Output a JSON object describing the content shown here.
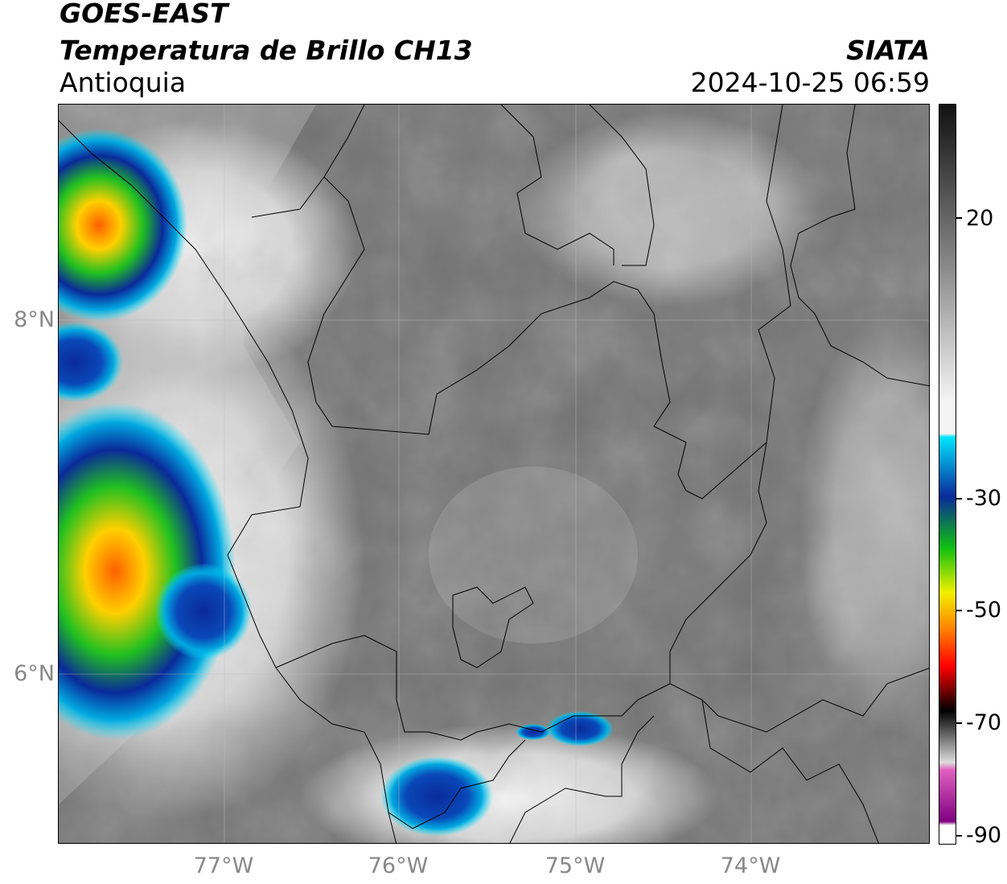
{
  "header": {
    "satellite": "GOES-EAST",
    "product": "Temperatura de Brillo CH13",
    "region": "Antioquia",
    "organization": "SIATA",
    "datetime": "2024-10-25 06:59"
  },
  "map": {
    "latitude_labels": [
      {
        "text": "8°N",
        "lat": 8
      },
      {
        "text": "6°N",
        "lat": 6
      }
    ],
    "longitude_labels": [
      {
        "text": "77°W",
        "lon": -77
      },
      {
        "text": "76°W",
        "lon": -76
      },
      {
        "text": "75°W",
        "lon": -75
      },
      {
        "text": "74°W",
        "lon": -74
      }
    ],
    "extent": {
      "lon_min": -77.94,
      "lon_max": -73.02,
      "lat_min": 4.98,
      "lat_max": 9.2
    }
  },
  "colorbar": {
    "min": -90,
    "max": 30,
    "ticks": [
      {
        "text": "20",
        "value": 20
      },
      {
        "text": "-30",
        "value": -30
      },
      {
        "text": "-50",
        "value": -50
      },
      {
        "text": "-70",
        "value": -70
      },
      {
        "text": "-90",
        "value": -90
      }
    ],
    "colors": {
      "top": "#111111",
      "gray_mid": "#8a8a8a",
      "white": "#f4f4f4",
      "cyan": "#00e5ff",
      "blue": "#0a2a9a",
      "green": "#10c010",
      "yellow": "#f0f000",
      "orange": "#ff8000",
      "red": "#ff0000",
      "black": "#000000",
      "pink": "#e060c0",
      "purple": "#800080"
    }
  }
}
